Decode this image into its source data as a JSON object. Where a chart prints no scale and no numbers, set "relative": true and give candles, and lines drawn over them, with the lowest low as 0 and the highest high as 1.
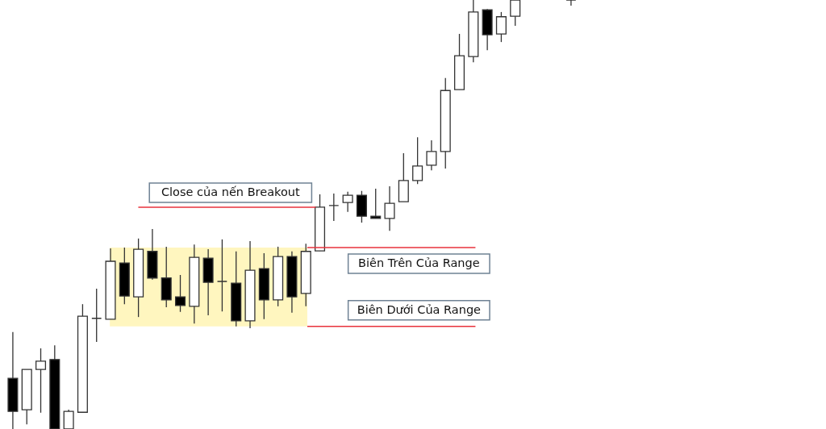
{
  "chart_data": {
    "type": "candlestick",
    "relative": true,
    "categories": [
      null,
      null,
      null,
      null,
      null,
      null,
      null,
      null,
      null,
      null,
      null,
      null,
      null,
      null,
      null,
      null,
      null,
      null,
      null,
      null,
      null,
      null,
      null,
      null,
      null,
      null,
      null,
      null,
      null,
      null,
      null,
      null,
      null,
      null,
      null,
      null,
      null,
      null,
      null,
      null,
      null
    ],
    "ohlc": [
      [
        0.118,
        0.226,
        0,
        0.041
      ],
      [
        0.045,
        0.139,
        0.011,
        0.139
      ],
      [
        0.139,
        0.188,
        0.038,
        0.158
      ],
      [
        0.162,
        0.195,
        0,
        0
      ],
      [
        0,
        0.045,
        0,
        0.041
      ],
      [
        0.039,
        0.291,
        0.039,
        0.263
      ],
      [
        0.258,
        0.327,
        0.203,
        0.258
      ],
      [
        0.256,
        0.421,
        0.256,
        0.391
      ],
      [
        0.387,
        0.423,
        0.291,
        0.31
      ],
      [
        0.308,
        0.444,
        0.261,
        0.419
      ],
      [
        0.414,
        0.466,
        0.348,
        0.352
      ],
      [
        0.352,
        0.425,
        0.284,
        0.301
      ],
      [
        0.308,
        0.359,
        0.273,
        0.288
      ],
      [
        0.286,
        0.43,
        0.246,
        0.4
      ],
      [
        0.398,
        0.419,
        0.265,
        0.342
      ],
      [
        0.344,
        0.442,
        0.274,
        0.344
      ],
      [
        0.34,
        0.414,
        0.239,
        0.252
      ],
      [
        0.252,
        0.438,
        0.235,
        0.37
      ],
      [
        0.374,
        0.41,
        0.256,
        0.301
      ],
      [
        0.301,
        0.425,
        0.286,
        0.402
      ],
      [
        0.402,
        0.414,
        0.271,
        0.308
      ],
      [
        0.316,
        0.432,
        0.286,
        0.414
      ],
      [
        0.415,
        0.547,
        0.415,
        0.517
      ],
      [
        0.521,
        0.549,
        0.485,
        0.521
      ],
      [
        0.528,
        0.553,
        0.506,
        0.545
      ],
      [
        0.545,
        0.555,
        0.481,
        0.496
      ],
      [
        0.496,
        0.56,
        0.491,
        0.491
      ],
      [
        0.491,
        0.566,
        0.462,
        0.526
      ],
      [
        0.53,
        0.643,
        0.53,
        0.579
      ],
      [
        0.579,
        0.68,
        0.571,
        0.613
      ],
      [
        0.615,
        0.673,
        0.603,
        0.647
      ],
      [
        0.647,
        0.818,
        0.607,
        0.789
      ],
      [
        0.791,
        0.921,
        0.791,
        0.87
      ],
      [
        0.868,
        1,
        0.855,
        0.972
      ],
      [
        0.977,
        0.979,
        0.883,
        0.919
      ],
      [
        0.921,
        0.972,
        0.902,
        0.961
      ],
      [
        0.962,
        1,
        0.94,
        1
      ],
      null,
      null,
      null,
      [
        1,
        1,
        0.987,
        1
      ]
    ],
    "ref_lines": [
      {
        "axis": "y",
        "value": 0.517,
        "label": "Close của nến Breakout",
        "color": "#e8323c"
      },
      {
        "axis": "y",
        "value": 0.423,
        "label": "Biên Trên Của Range",
        "color": "#e8323c"
      },
      {
        "axis": "y",
        "value": 0.239,
        "label": "Biên Dưới Của Range",
        "color": "#e8323c"
      }
    ],
    "bands": [
      {
        "axis": "y",
        "from": 0.239,
        "to": 0.423,
        "color": "#fff6bf"
      }
    ]
  }
}
